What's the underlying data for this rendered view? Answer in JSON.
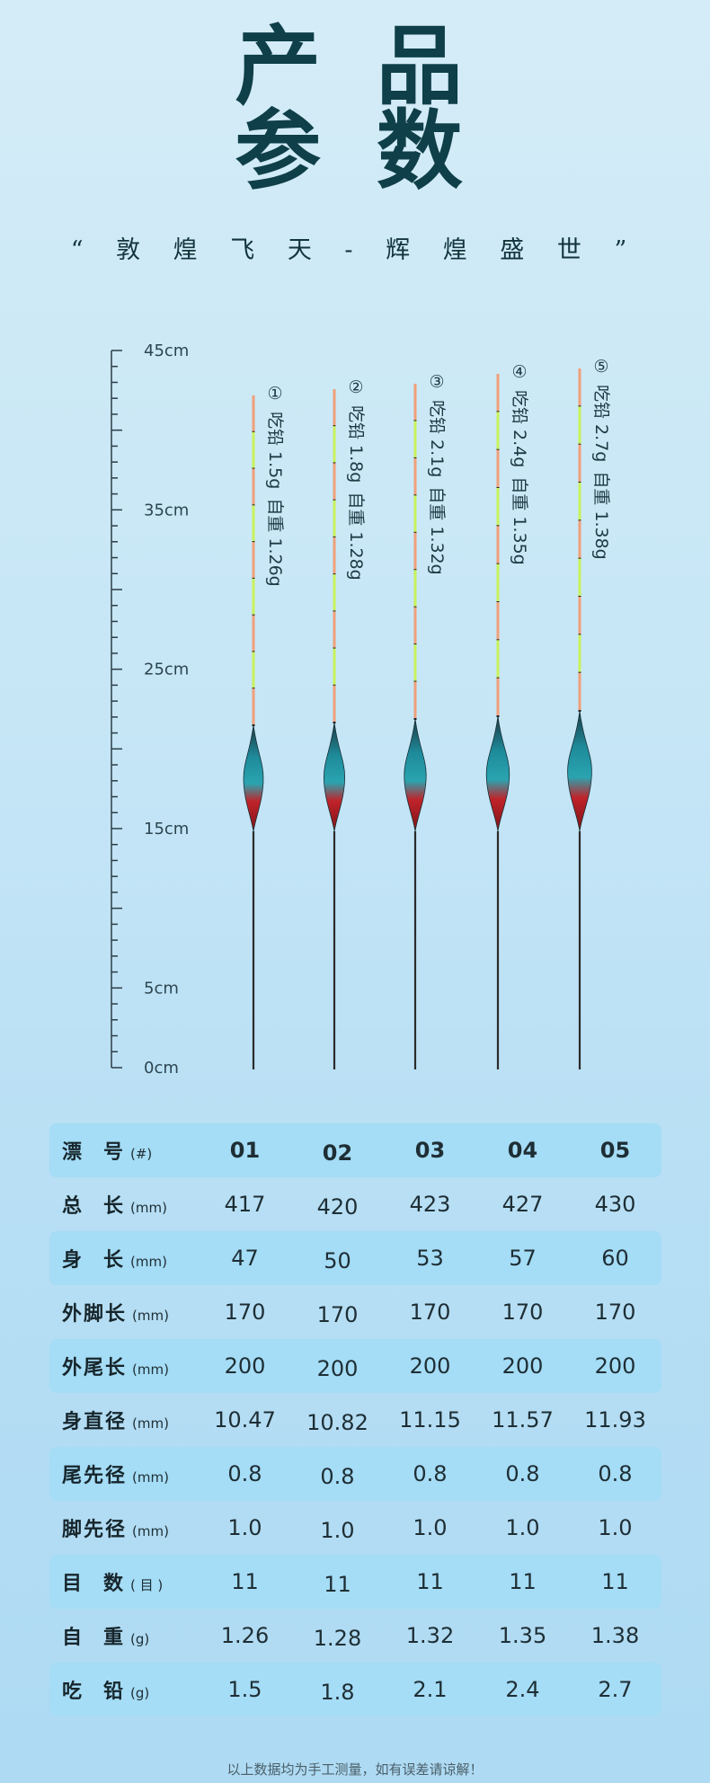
{
  "title": {
    "line1": "产 品",
    "line2": "参 数"
  },
  "slogan": "“ 敦 煌 飞 天 - 辉 煌 盛 世 ”",
  "ruler": {
    "labels": [
      "45cm",
      "35cm",
      "25cm",
      "15cm",
      "5cm",
      "0cm"
    ],
    "max_cm": 45
  },
  "floats": [
    {
      "num": "①",
      "lead": "吃铅 1.5g",
      "weight": "自重 1.26g",
      "total_mm": 417
    },
    {
      "num": "②",
      "lead": "吃铅 1.8g",
      "weight": "自重 1.28g",
      "total_mm": 420
    },
    {
      "num": "③",
      "lead": "吃铅 2.1g",
      "weight": "自重 1.32g",
      "total_mm": 423
    },
    {
      "num": "④",
      "lead": "吃铅 2.4g",
      "weight": "自重 1.35g",
      "total_mm": 427
    },
    {
      "num": "⑤",
      "lead": "吃铅 2.7g",
      "weight": "自重 1.38g",
      "total_mm": 430
    }
  ],
  "table": {
    "rows": [
      {
        "name": "漂　号",
        "unit": "(#)",
        "values": [
          "01",
          "02",
          "03",
          "04",
          "05"
        ]
      },
      {
        "name": "总　长",
        "unit": "(mm)",
        "values": [
          "417",
          "420",
          "423",
          "427",
          "430"
        ]
      },
      {
        "name": "身　长",
        "unit": "(mm)",
        "values": [
          "47",
          "50",
          "53",
          "57",
          "60"
        ]
      },
      {
        "name": "外脚长",
        "unit": "(mm)",
        "values": [
          "170",
          "170",
          "170",
          "170",
          "170"
        ]
      },
      {
        "name": "外尾长",
        "unit": "(mm)",
        "values": [
          "200",
          "200",
          "200",
          "200",
          "200"
        ]
      },
      {
        "name": "身直径",
        "unit": "(mm)",
        "values": [
          "10.47",
          "10.82",
          "11.15",
          "11.57",
          "11.93"
        ]
      },
      {
        "name": "尾先径",
        "unit": "(mm)",
        "values": [
          "0.8",
          "0.8",
          "0.8",
          "0.8",
          "0.8"
        ]
      },
      {
        "name": "脚先径",
        "unit": "(mm)",
        "values": [
          "1.0",
          "1.0",
          "1.0",
          "1.0",
          "1.0"
        ]
      },
      {
        "name": "目　数",
        "unit": "( 目 )",
        "values": [
          "11",
          "11",
          "11",
          "11",
          "11"
        ]
      },
      {
        "name": "自　重",
        "unit": "(g)",
        "values": [
          "1.26",
          "1.28",
          "1.32",
          "1.35",
          "1.38"
        ]
      },
      {
        "name": "吃　铅",
        "unit": "(g)",
        "values": [
          "1.5",
          "1.8",
          "2.1",
          "2.4",
          "2.7"
        ]
      }
    ]
  },
  "footnote": "以上数据均为手工测量，如有误差请谅解！",
  "colors": {
    "tip_orange": "#f0a07a",
    "tip_green": "#c8f25a",
    "body_teal": "#1e8a9a",
    "body_red": "#c0232a",
    "stem_dark": "#2b2b2b"
  }
}
